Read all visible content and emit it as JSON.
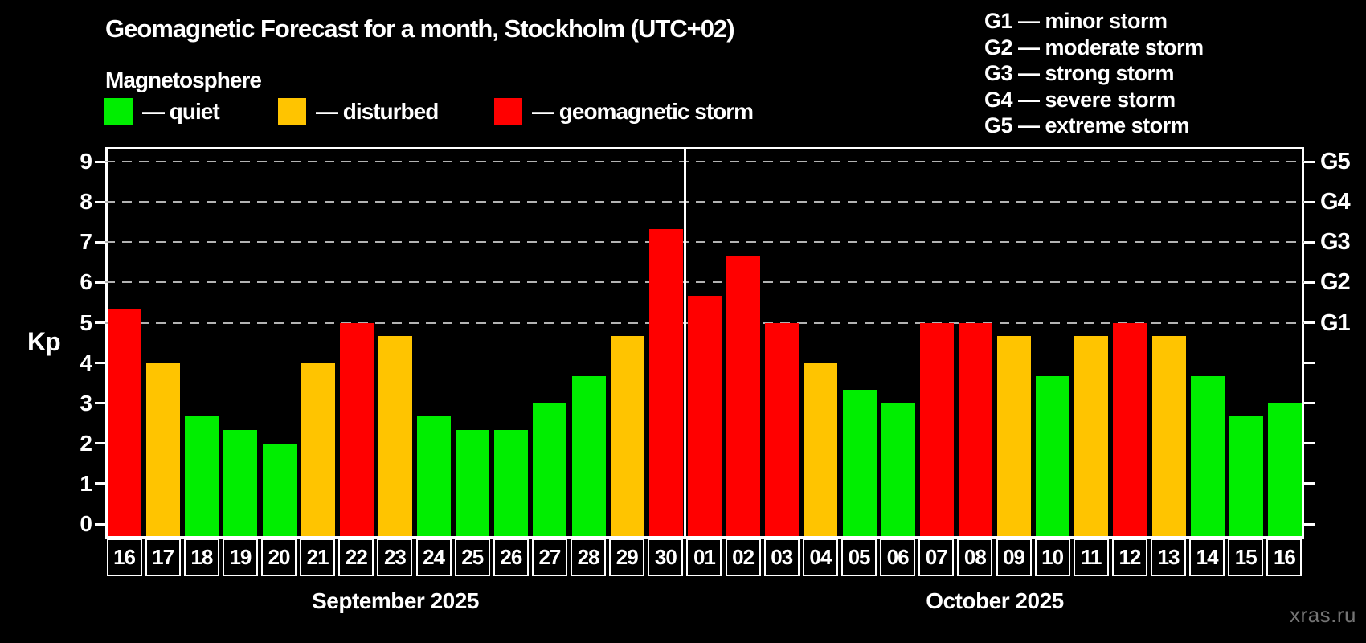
{
  "header": {
    "title": "Geomagnetic Forecast for a month, Stockholm (UTC+02)",
    "subtitle": "Magnetosphere",
    "legend": [
      {
        "key": "quiet",
        "label": "— quiet",
        "color": "#00ee00"
      },
      {
        "key": "disturbed",
        "label": "— disturbed",
        "color": "#ffc400"
      },
      {
        "key": "storm",
        "label": "— geomagnetic storm",
        "color": "#ff0000"
      }
    ],
    "g_scale": [
      "G1 — minor storm",
      "G2 — moderate storm",
      "G3 — strong storm",
      "G4 — severe storm",
      "G5 — extreme storm"
    ]
  },
  "watermark": "xras.ru",
  "chart_data": {
    "type": "bar",
    "title": "Geomagnetic Forecast for a month, Stockholm (UTC+02)",
    "subtitle": "Magnetosphere",
    "ylabel": "Kp",
    "ylim": [
      0,
      9.4
    ],
    "yticks": [
      0,
      1,
      2,
      3,
      4,
      5,
      6,
      7,
      8,
      9
    ],
    "gridlines_at": [
      5,
      6,
      7,
      8,
      9
    ],
    "grid": "dashed horizontal at storm levels only",
    "legend_position": "top",
    "right_axis_labels": [
      {
        "kp": 5,
        "label": "G1"
      },
      {
        "kp": 6,
        "label": "G2"
      },
      {
        "kp": 7,
        "label": "G3"
      },
      {
        "kp": 8,
        "label": "G4"
      },
      {
        "kp": 9,
        "label": "G5"
      }
    ],
    "months": [
      {
        "label": "September 2025",
        "days": 15
      },
      {
        "label": "October 2025",
        "days": 16
      }
    ],
    "status_colors": {
      "quiet": "#00ee00",
      "disturbed": "#ffc400",
      "storm": "#ff0000"
    },
    "bars": [
      {
        "day": "16",
        "value": 5.33,
        "status": "storm"
      },
      {
        "day": "17",
        "value": 4.0,
        "status": "disturbed"
      },
      {
        "day": "18",
        "value": 2.67,
        "status": "quiet"
      },
      {
        "day": "19",
        "value": 2.33,
        "status": "quiet"
      },
      {
        "day": "20",
        "value": 2.0,
        "status": "quiet"
      },
      {
        "day": "21",
        "value": 4.0,
        "status": "disturbed"
      },
      {
        "day": "22",
        "value": 5.0,
        "status": "storm"
      },
      {
        "day": "23",
        "value": 4.67,
        "status": "disturbed"
      },
      {
        "day": "24",
        "value": 2.67,
        "status": "quiet"
      },
      {
        "day": "25",
        "value": 2.33,
        "status": "quiet"
      },
      {
        "day": "26",
        "value": 2.33,
        "status": "quiet"
      },
      {
        "day": "27",
        "value": 3.0,
        "status": "quiet"
      },
      {
        "day": "28",
        "value": 3.67,
        "status": "quiet"
      },
      {
        "day": "29",
        "value": 4.67,
        "status": "disturbed"
      },
      {
        "day": "30",
        "value": 7.33,
        "status": "storm"
      },
      {
        "day": "01",
        "value": 5.67,
        "status": "storm"
      },
      {
        "day": "02",
        "value": 6.67,
        "status": "storm"
      },
      {
        "day": "03",
        "value": 5.0,
        "status": "storm"
      },
      {
        "day": "04",
        "value": 4.0,
        "status": "disturbed"
      },
      {
        "day": "05",
        "value": 3.33,
        "status": "quiet"
      },
      {
        "day": "06",
        "value": 3.0,
        "status": "quiet"
      },
      {
        "day": "07",
        "value": 5.0,
        "status": "storm"
      },
      {
        "day": "08",
        "value": 5.0,
        "status": "storm"
      },
      {
        "day": "09",
        "value": 4.67,
        "status": "disturbed"
      },
      {
        "day": "10",
        "value": 3.67,
        "status": "quiet"
      },
      {
        "day": "11",
        "value": 4.67,
        "status": "disturbed"
      },
      {
        "day": "12",
        "value": 5.0,
        "status": "storm"
      },
      {
        "day": "13",
        "value": 4.67,
        "status": "disturbed"
      },
      {
        "day": "14",
        "value": 3.67,
        "status": "quiet"
      },
      {
        "day": "15",
        "value": 2.67,
        "status": "quiet"
      },
      {
        "day": "16",
        "value": 3.0,
        "status": "quiet"
      }
    ]
  }
}
